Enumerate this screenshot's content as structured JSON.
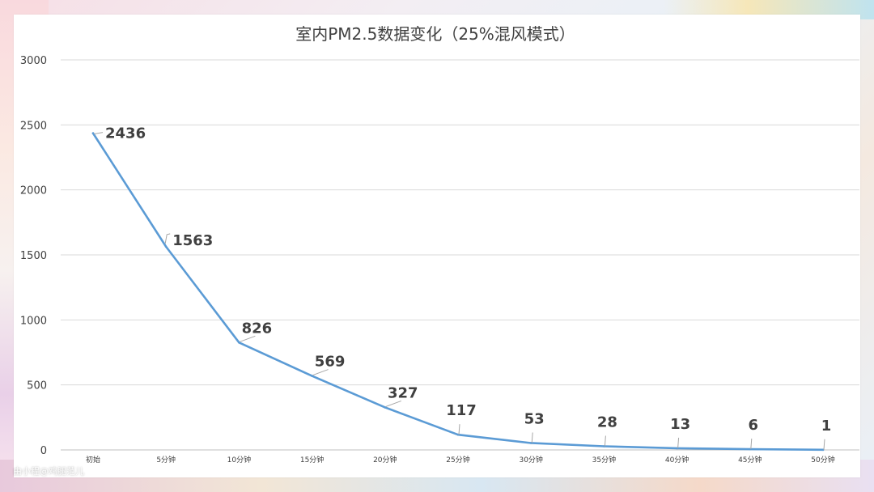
{
  "chart_data": {
    "type": "line",
    "title": "室内PM2.5数据变化（25%混风模式）",
    "xlabel": "",
    "ylabel": "",
    "categories": [
      "初始",
      "5分钟",
      "10分钟",
      "15分钟",
      "20分钟",
      "25分钟",
      "30分钟",
      "35分钟",
      "40分钟",
      "45分钟",
      "50分钟"
    ],
    "values": [
      2436,
      1563,
      826,
      569,
      327,
      117,
      53,
      28,
      13,
      6,
      1
    ],
    "data_labels": [
      "2436",
      "1563",
      "826",
      "569",
      "327",
      "117",
      "53",
      "28",
      "13",
      "6",
      "1"
    ],
    "y_ticks": [
      "0",
      "500",
      "1000",
      "1500",
      "2000",
      "2500",
      "3000"
    ],
    "ylim": [
      0,
      3000
    ],
    "grid": "horizontal",
    "line_color": "#5b9bd5",
    "legend": "none"
  },
  "watermark": "由小程@鸡腿范儿"
}
